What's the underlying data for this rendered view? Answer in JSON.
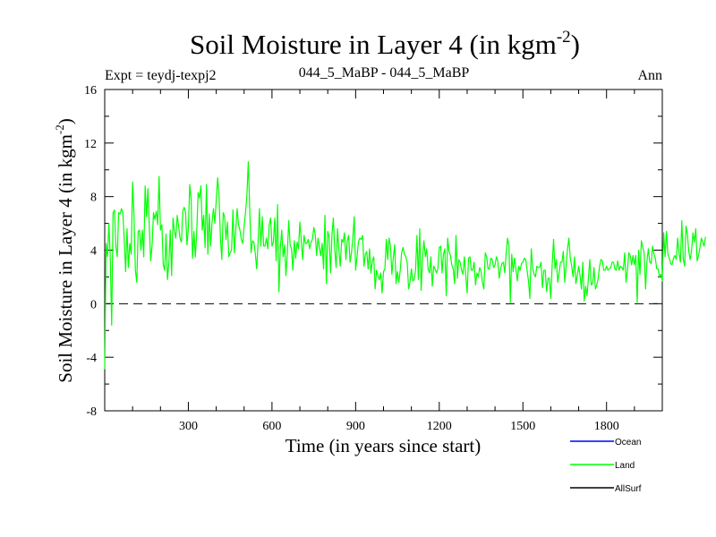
{
  "chart_data": {
    "type": "line",
    "title": "Soil Moisture in Layer 4 (in kgm",
    "title_sup": "-2",
    "title_close": ")",
    "subtitle_left": "Expt = teydj-texpj2",
    "subtitle_center": "044_5_MaBP - 044_5_MaBP",
    "subtitle_right": "Ann",
    "xlabel": "Time (in years since start)",
    "ylabel": "Soil Moisture in Layer 4 (in kgm",
    "ylabel_sup": "-2",
    "ylabel_close": ")",
    "xlim": [
      0,
      2000
    ],
    "ylim": [
      -8,
      16
    ],
    "xticks": [
      300,
      600,
      900,
      1200,
      1500,
      1800
    ],
    "yticks": [
      -8,
      -4,
      0,
      4,
      8,
      12,
      16
    ],
    "zero_line": 0,
    "legend": [
      {
        "name": "Ocean",
        "color": "#0000ff"
      },
      {
        "name": "Land",
        "color": "#00ff00"
      },
      {
        "name": "AllSurf",
        "color": "#000000"
      }
    ],
    "series": [
      {
        "name": "Land",
        "color": "#00ff00",
        "x_start": 0,
        "x_step": 5,
        "values": [
          -4.9,
          4.5,
          3.5,
          6.0,
          3.4,
          -1.6,
          6.8,
          7.0,
          4.3,
          3.5,
          6.8,
          6.7,
          7.1,
          6.8,
          4.8,
          2.4,
          5.6,
          2.7,
          4.5,
          3.7,
          9.1,
          6.6,
          2.5,
          1.6,
          5.4,
          5.5,
          4.0,
          5.5,
          3.5,
          8.8,
          6.5,
          8.6,
          5.7,
          3.2,
          4.4,
          6.8,
          6.3,
          6.9,
          5.9,
          9.5,
          5.5,
          5.9,
          2.9,
          2.5,
          5.2,
          1.8,
          3.0,
          5.5,
          2.1,
          6.4,
          5.4,
          4.9,
          6.6,
          5.8,
          4.9,
          4.6,
          6.9,
          7.2,
          6.8,
          4.4,
          5.6,
          8.9,
          7.8,
          3.4,
          5.4,
          3.5,
          5.3,
          8.3,
          7.9,
          8.8,
          5.5,
          6.6,
          4.2,
          8.9,
          3.7,
          6.7,
          4.3,
          6.1,
          7.1,
          6.0,
          7.7,
          9.4,
          8.1,
          4.9,
          3.3,
          6.8,
          6.5,
          4.8,
          6.1,
          3.5,
          3.8,
          4.0,
          7.0,
          3.8,
          5.5,
          7.1,
          5.9,
          5.5,
          4.8,
          4.5,
          5.8,
          6.8,
          8.1,
          10.6,
          7.2,
          3.8,
          4.7,
          4.6,
          3.8,
          2.6,
          4.5,
          7.1,
          4.3,
          6.5,
          4.3,
          4.3,
          4.9,
          4.1,
          5.9,
          6.4,
          4.3,
          4.6,
          6.4,
          3.2,
          7.4,
          0.9,
          4.2,
          5.5,
          3.5,
          4.4,
          2.1,
          3.8,
          6.2,
          4.4,
          4.1,
          2.5,
          4.7,
          3.4,
          4.6,
          4.1,
          6.1,
          4.7,
          3.3,
          5.1,
          4.5,
          4.5,
          4.8,
          4.1,
          4.6,
          4.8,
          5.7,
          5.2,
          3.6,
          4.9,
          4.2,
          3.6,
          4.5,
          2.6,
          6.6,
          1.5,
          5.4,
          5.0,
          2.3,
          5.1,
          6.4,
          4.1,
          2.7,
          5.6,
          4.0,
          2.8,
          4.8,
          4.6,
          5.3,
          3.3,
          4.7,
          5.1,
          3.1,
          3.8,
          4.9,
          6.5,
          2.5,
          3.5,
          4.6,
          4.9,
          4.8,
          5.1,
          2.8,
          3.7,
          3.9,
          2.6,
          4.1,
          2.3,
          3.2,
          3.5,
          1.1,
          2.5,
          2.1,
          1.8,
          2.3,
          0.8,
          2.4,
          2.6,
          4.8,
          3.3,
          4.9,
          4.3,
          2.2,
          3.4,
          4.4,
          1.5,
          2.4,
          1.6,
          2.5,
          3.8,
          4.2,
          3.7,
          3.5,
          3.1,
          1.1,
          1.6,
          2.6,
          1.7,
          1.8,
          2.5,
          5.1,
          1.8,
          5.6,
          1.0,
          3.4,
          4.7,
          3.5,
          4.1,
          2.6,
          2.3,
          3.5,
          1.3,
          2.8,
          2.6,
          2.3,
          2.6,
          4.2,
          4.3,
          2.3,
          3.7,
          4.1,
          0.6,
          4.9,
          3.9,
          3.6,
          2.9,
          2.6,
          1.5,
          5.1,
          1.9,
          3.3,
          3.1,
          2.5,
          2.2,
          3.5,
          2.1,
          0.8,
          3.4,
          3.5,
          2.5,
          2.5,
          3.1,
          1.4,
          2.3,
          2.0,
          2.7,
          2.4,
          1.6,
          1.1,
          3.8,
          3.5,
          2.6,
          2.6,
          3.4,
          3.3,
          2.7,
          2.9,
          3.5,
          3.2,
          1.9,
          2.6,
          3.0,
          3.1,
          2.3,
          3.8,
          4.9,
          4.3,
          0.1,
          3.7,
          2.4,
          3.4,
          2.6,
          1.7,
          2.8,
          2.5,
          3.0,
          3.1,
          3.4,
          3.3,
          2.5,
          1.7,
          0.4,
          4.1,
          2.7,
          2.2,
          2.0,
          2.8,
          2.7,
          2.7,
          3.1,
          1.2,
          2.5,
          2.5,
          0.9,
          1.9,
          1.9,
          0.4,
          2.9,
          4.8,
          2.6,
          3.3,
          1.6,
          2.3,
          3.1,
          3.1,
          3.9,
          1.6,
          2.8,
          4.1,
          4.9,
          3.4,
          2.8,
          2.0,
          3.5,
          1.5,
          2.1,
          2.8,
          2.1,
          1.1,
          3.1,
          0.2,
          1.3,
          0.6,
          1.9,
          3.3,
          1.4,
          1.5,
          2.7,
          1.1,
          1.4,
          1.9,
          2.8,
          3.3,
          3.2,
          2.5,
          2.5,
          2.8,
          2.5,
          2.6,
          2.7,
          3.1,
          3.1,
          2.6,
          2.5,
          3.2,
          2.5,
          2.8,
          2.7,
          2.5,
          3.8,
          1.6,
          2.5,
          3.8,
          3.6,
          2.9,
          3.6,
          2.9,
          3.6,
          0.1,
          4.0,
          2.2,
          4.7,
          4.2,
          3.8,
          1.1,
          3.2,
          4.1,
          3.1,
          3.0,
          4.3,
          3.7,
          3.4,
          2.6,
          2.6,
          2.0,
          2.2,
          1.7,
          5.3,
          3.5,
          5.4,
          3.7,
          3.4,
          3.0,
          2.9,
          3.4,
          3.6,
          3.3,
          4.9,
          3.8,
          3.1,
          6.2,
          3.4,
          2.8,
          5.8,
          5.2,
          3.9,
          3.3,
          4.0,
          5.3,
          4.6,
          5.6,
          3.2,
          3.6,
          4.2,
          4.9,
          4.6,
          4.3,
          5.0
        ]
      }
    ]
  }
}
